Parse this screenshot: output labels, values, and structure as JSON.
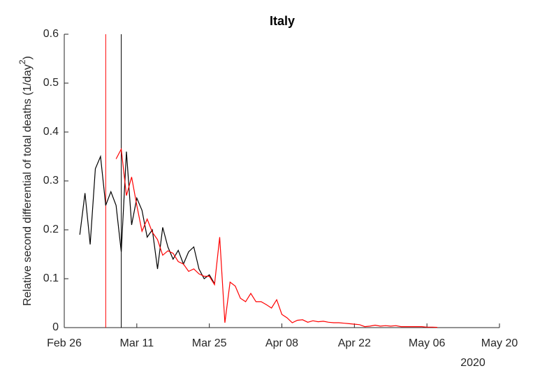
{
  "chart_data": {
    "type": "line",
    "title": "Italy",
    "y_label": "Relative second differential of total deaths (1/day",
    "y_label_sup": "2",
    "y_label_end": ")",
    "x_year_label": "2020",
    "x": [
      "2020-02-29",
      "2020-03-01",
      "2020-03-02",
      "2020-03-03",
      "2020-03-04",
      "2020-03-05",
      "2020-03-06",
      "2020-03-07",
      "2020-03-08",
      "2020-03-09",
      "2020-03-10",
      "2020-03-11",
      "2020-03-12",
      "2020-03-13",
      "2020-03-14",
      "2020-03-15",
      "2020-03-16",
      "2020-03-17",
      "2020-03-18",
      "2020-03-19",
      "2020-03-20",
      "2020-03-21",
      "2020-03-22",
      "2020-03-23",
      "2020-03-24",
      "2020-03-25",
      "2020-03-26",
      "2020-03-27",
      "2020-03-28",
      "2020-03-29",
      "2020-03-30",
      "2020-03-31",
      "2020-04-01",
      "2020-04-02",
      "2020-04-03",
      "2020-04-04",
      "2020-04-05",
      "2020-04-06",
      "2020-04-07",
      "2020-04-08",
      "2020-04-09",
      "2020-04-10",
      "2020-04-11",
      "2020-04-12",
      "2020-04-13",
      "2020-04-14",
      "2020-04-15",
      "2020-04-16",
      "2020-04-17",
      "2020-04-18",
      "2020-04-19",
      "2020-04-20",
      "2020-04-21",
      "2020-04-22",
      "2020-04-23",
      "2020-04-24",
      "2020-04-25",
      "2020-04-26",
      "2020-04-27",
      "2020-04-28",
      "2020-04-29",
      "2020-04-30",
      "2020-05-01",
      "2020-05-02",
      "2020-05-03",
      "2020-05-04",
      "2020-05-05",
      "2020-05-06",
      "2020-05-07",
      "2020-05-08"
    ],
    "series": [
      {
        "color": "#000000",
        "values": [
          0.19,
          0.275,
          0.17,
          0.325,
          0.35,
          0.25,
          0.278,
          0.25,
          0.155,
          0.36,
          0.21,
          0.265,
          0.24,
          0.185,
          0.2,
          0.12,
          0.205,
          0.165,
          0.14,
          0.158,
          0.13,
          0.155,
          0.165,
          0.12,
          0.1,
          0.108,
          0.09,
          null,
          null,
          null,
          null,
          null,
          null,
          null,
          null,
          null,
          null,
          null,
          null,
          null,
          null,
          null,
          null,
          null,
          null,
          null,
          null,
          null,
          null,
          null,
          null,
          null,
          null,
          null,
          null,
          null,
          null,
          null,
          null,
          null,
          null,
          null,
          null,
          null,
          null,
          null,
          null,
          null,
          null,
          null
        ]
      },
      {
        "color": "#ff0000",
        "values": [
          null,
          null,
          null,
          null,
          null,
          null,
          null,
          0.345,
          0.365,
          0.27,
          0.308,
          0.25,
          0.197,
          0.222,
          0.195,
          0.18,
          0.148,
          0.157,
          0.152,
          0.135,
          0.13,
          0.115,
          0.12,
          0.11,
          0.105,
          0.105,
          0.088,
          0.185,
          0.01,
          0.093,
          0.085,
          0.06,
          0.053,
          0.07,
          0.053,
          0.053,
          0.047,
          0.04,
          0.057,
          0.027,
          0.02,
          0.01,
          0.015,
          0.016,
          0.011,
          0.014,
          0.012,
          0.013,
          0.011,
          0.01,
          0.01,
          0.009,
          0.008,
          0.007,
          0.006,
          0.002,
          0.003,
          0.005,
          0.003,
          0.004,
          0.003,
          0.004,
          0.002,
          0.002,
          0.002,
          0.002,
          0.002,
          0.001,
          0.001,
          0.0005
        ]
      }
    ],
    "vlines": [
      {
        "x": "2020-03-05",
        "color": "#ff0000"
      },
      {
        "x": "2020-03-08",
        "color": "#000000"
      }
    ],
    "xlim": [
      "2020-02-26",
      "2020-05-20"
    ],
    "xticks": [
      {
        "value": "2020-02-26",
        "label": "Feb 26"
      },
      {
        "value": "2020-03-11",
        "label": "Mar 11"
      },
      {
        "value": "2020-03-25",
        "label": "Mar 25"
      },
      {
        "value": "2020-04-08",
        "label": "Apr 08"
      },
      {
        "value": "2020-04-22",
        "label": "Apr 22"
      },
      {
        "value": "2020-05-06",
        "label": "May 06"
      },
      {
        "value": "2020-05-20",
        "label": "May 20"
      }
    ],
    "ylim": [
      0,
      0.6
    ],
    "yticks": [
      0,
      0.1,
      0.2,
      0.3,
      0.4,
      0.5,
      0.6
    ],
    "grid": false
  }
}
